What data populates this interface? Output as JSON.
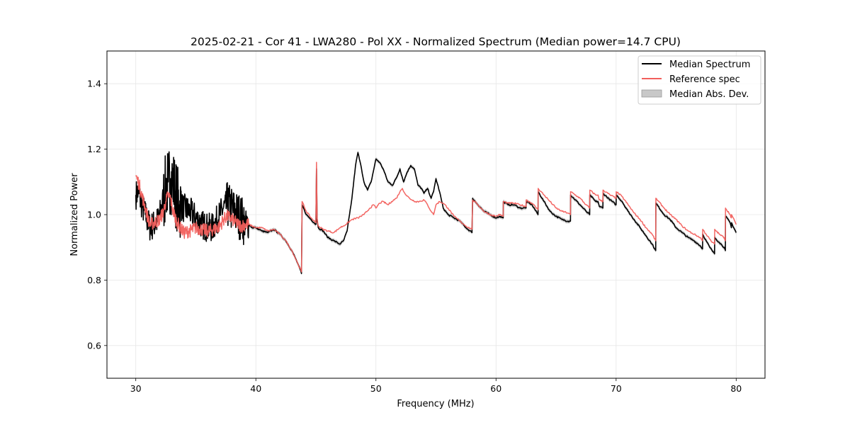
{
  "chart_data": {
    "type": "line",
    "title": "2025-02-21 - Cor 41 - LWA280 - Pol XX - Normalized Spectrum (Median power=14.7 CPU)",
    "xlabel": "Frequency (MHz)",
    "ylabel": "Normalized Power",
    "xlim": [
      27.6,
      82.4
    ],
    "ylim": [
      0.5,
      1.5
    ],
    "xticks": [
      30,
      40,
      50,
      60,
      70,
      80
    ],
    "yticks": [
      0.6,
      0.8,
      1.0,
      1.2,
      1.4
    ],
    "xtick_labels": [
      "30",
      "40",
      "50",
      "60",
      "70",
      "80"
    ],
    "ytick_labels": [
      "0.6",
      "0.8",
      "1.0",
      "1.2",
      "1.4"
    ],
    "grid": true,
    "legend_position": "top-right",
    "legend": [
      "Median Spectrum",
      "Reference spec",
      "Median Abs. Dev."
    ],
    "colors": {
      "median": "#000000",
      "reference": "#f25f5c",
      "mad": "#b8b8b8"
    },
    "noisy_band_mhz": [
      30.0,
      39.5
    ],
    "mad_halfwidth": 0.006,
    "series": [
      {
        "name": "Median Spectrum",
        "x": [
          30.0,
          30.2,
          30.5,
          30.8,
          31.0,
          31.2,
          31.5,
          31.8,
          32.0,
          32.3,
          32.5,
          32.7,
          32.9,
          33.1,
          33.3,
          33.6,
          34.0,
          34.5,
          35.0,
          35.5,
          36.0,
          36.4,
          36.7,
          37.0,
          37.3,
          37.6,
          37.9,
          38.2,
          38.5,
          38.8,
          39.1,
          39.4,
          39.7,
          40.0,
          40.5,
          41.0,
          41.5,
          42.0,
          42.5,
          43.0,
          43.5,
          43.8,
          43.85,
          44.2,
          44.6,
          45.0,
          45.05,
          45.1,
          45.2,
          45.6,
          46.0,
          46.5,
          47.0,
          47.3,
          47.6,
          47.8,
          48.0,
          48.3,
          48.5,
          48.8,
          49.0,
          49.3,
          49.6,
          50.0,
          50.3,
          50.6,
          51.0,
          51.4,
          51.8,
          52.0,
          52.3,
          52.6,
          52.9,
          53.2,
          53.5,
          53.8,
          54.0,
          54.3,
          54.6,
          54.8,
          55.0,
          55.3,
          55.6,
          56.0,
          56.5,
          57.0,
          57.5,
          58.0,
          58.05,
          58.5,
          59.0,
          59.5,
          60.0,
          60.3,
          60.6,
          60.61,
          61.0,
          61.5,
          62.0,
          62.5,
          62.51,
          63.0,
          63.5,
          63.51,
          64.0,
          64.5,
          65.0,
          65.5,
          66.0,
          66.2,
          66.21,
          67.0,
          67.5,
          67.8,
          67.81,
          68.3,
          68.5,
          68.6,
          68.9,
          68.91,
          69.5,
          70.0,
          70.01,
          70.5,
          71.0,
          71.5,
          72.0,
          72.5,
          73.0,
          73.3,
          73.31,
          74.0,
          74.5,
          75.0,
          75.5,
          76.0,
          76.5,
          77.0,
          77.2,
          77.21,
          77.5,
          77.8,
          78.0,
          78.2,
          78.21,
          78.6,
          79.0,
          79.1,
          79.11,
          79.5,
          79.6,
          79.61,
          80.0
        ],
        "values": [
          1.06,
          1.07,
          1.03,
          1.0,
          0.98,
          0.96,
          0.97,
          0.98,
          1.0,
          1.05,
          1.08,
          1.1,
          1.11,
          1.1,
          1.07,
          1.03,
          1.02,
          1.01,
          0.99,
          0.97,
          0.96,
          0.96,
          0.98,
          1.0,
          1.02,
          1.03,
          1.02,
          1.01,
          1.0,
          0.99,
          0.97,
          0.97,
          0.96,
          0.96,
          0.95,
          0.945,
          0.955,
          0.94,
          0.92,
          0.89,
          0.85,
          0.82,
          1.03,
          1.0,
          0.985,
          0.97,
          1.14,
          0.98,
          0.96,
          0.95,
          0.93,
          0.92,
          0.91,
          0.92,
          0.95,
          1.0,
          1.05,
          1.15,
          1.19,
          1.14,
          1.1,
          1.075,
          1.1,
          1.17,
          1.16,
          1.14,
          1.1,
          1.09,
          1.12,
          1.14,
          1.1,
          1.13,
          1.15,
          1.14,
          1.09,
          1.08,
          1.065,
          1.08,
          1.05,
          1.07,
          1.11,
          1.07,
          1.02,
          1.0,
          0.99,
          0.98,
          0.96,
          0.945,
          1.05,
          1.03,
          1.01,
          1.0,
          0.99,
          0.995,
          0.99,
          1.04,
          1.03,
          1.03,
          1.02,
          1.02,
          1.04,
          1.03,
          1.0,
          1.07,
          1.04,
          1.01,
          0.995,
          0.985,
          0.98,
          0.98,
          1.06,
          1.03,
          1.01,
          1.0,
          1.06,
          1.04,
          1.04,
          1.025,
          1.02,
          1.065,
          1.045,
          1.03,
          1.06,
          1.04,
          1.01,
          0.985,
          0.96,
          0.935,
          0.91,
          0.89,
          1.035,
          1.0,
          0.985,
          0.96,
          0.945,
          0.93,
          0.92,
          0.905,
          0.895,
          0.94,
          0.92,
          0.9,
          0.89,
          0.88,
          0.93,
          0.915,
          0.9,
          0.89,
          0.995,
          0.975,
          0.96,
          0.975,
          0.945
        ]
      },
      {
        "name": "Reference spec",
        "x": [
          30.0,
          30.1,
          30.3,
          30.5,
          30.8,
          31.0,
          31.2,
          31.5,
          32.0,
          32.3,
          32.5,
          32.7,
          32.9,
          33.1,
          33.4,
          33.7,
          34.0,
          34.5,
          35.0,
          35.5,
          36.0,
          36.5,
          37.0,
          37.3,
          37.6,
          37.9,
          38.2,
          38.5,
          38.8,
          39.1,
          39.4,
          39.7,
          40.0,
          40.5,
          41.0,
          41.5,
          42.0,
          42.5,
          43.0,
          43.5,
          43.8,
          43.85,
          44.2,
          44.6,
          45.0,
          45.05,
          45.1,
          45.2,
          45.6,
          46.0,
          46.5,
          47.0,
          47.5,
          48.0,
          48.5,
          49.0,
          49.5,
          49.8,
          50.0,
          50.3,
          50.6,
          51.0,
          51.3,
          51.7,
          52.0,
          52.2,
          52.5,
          52.8,
          53.0,
          53.3,
          53.6,
          54.0,
          54.3,
          54.6,
          54.8,
          55.0,
          55.3,
          55.6,
          56.0,
          56.5,
          57.0,
          57.5,
          58.0,
          58.05,
          58.5,
          59.0,
          59.5,
          60.0,
          60.3,
          60.6,
          60.61,
          61.0,
          61.5,
          62.0,
          62.5,
          62.51,
          63.0,
          63.5,
          63.51,
          64.0,
          64.5,
          65.0,
          65.5,
          66.0,
          66.2,
          66.21,
          67.0,
          67.5,
          67.8,
          67.81,
          68.3,
          68.5,
          68.6,
          68.9,
          68.91,
          69.5,
          70.0,
          70.01,
          70.5,
          71.0,
          71.5,
          72.0,
          72.5,
          73.0,
          73.3,
          73.31,
          74.0,
          74.5,
          75.0,
          75.5,
          76.0,
          76.5,
          77.0,
          77.2,
          77.21,
          77.5,
          77.8,
          78.0,
          78.2,
          78.21,
          78.6,
          79.0,
          79.1,
          79.11,
          79.5,
          79.6,
          79.61,
          80.0
        ],
        "values": [
          1.12,
          1.11,
          1.09,
          1.06,
          1.02,
          0.99,
          0.97,
          0.975,
          0.985,
          1.01,
          1.04,
          1.06,
          1.05,
          1.01,
          0.98,
          0.96,
          0.945,
          0.95,
          0.96,
          0.955,
          0.95,
          0.955,
          0.965,
          0.985,
          0.995,
          0.99,
          0.98,
          0.97,
          0.965,
          0.97,
          0.97,
          0.965,
          0.96,
          0.96,
          0.95,
          0.955,
          0.94,
          0.92,
          0.89,
          0.85,
          0.825,
          1.04,
          1.01,
          0.99,
          0.975,
          1.16,
          0.99,
          0.965,
          0.955,
          0.95,
          0.945,
          0.96,
          0.97,
          0.985,
          0.99,
          1.0,
          1.02,
          1.03,
          1.02,
          1.035,
          1.04,
          1.03,
          1.04,
          1.05,
          1.07,
          1.08,
          1.06,
          1.05,
          1.045,
          1.04,
          1.04,
          1.045,
          1.03,
          1.01,
          1.0,
          1.03,
          1.04,
          1.035,
          1.02,
          0.995,
          0.98,
          0.965,
          0.955,
          1.045,
          1.03,
          1.01,
          1.0,
          0.995,
          1.0,
          0.995,
          1.04,
          1.035,
          1.035,
          1.03,
          1.025,
          1.045,
          1.035,
          1.015,
          1.08,
          1.06,
          1.04,
          1.02,
          1.01,
          1.005,
          1.0,
          1.07,
          1.05,
          1.03,
          1.02,
          1.075,
          1.06,
          1.06,
          1.045,
          1.04,
          1.075,
          1.06,
          1.05,
          1.07,
          1.055,
          1.03,
          1.005,
          0.985,
          0.96,
          0.94,
          0.92,
          1.05,
          1.02,
          1.0,
          0.985,
          0.965,
          0.95,
          0.94,
          0.93,
          0.92,
          0.955,
          0.94,
          0.925,
          0.915,
          0.91,
          0.955,
          0.94,
          0.93,
          0.92,
          1.02,
          1.0,
          0.99,
          1.0,
          0.97
        ]
      }
    ]
  }
}
